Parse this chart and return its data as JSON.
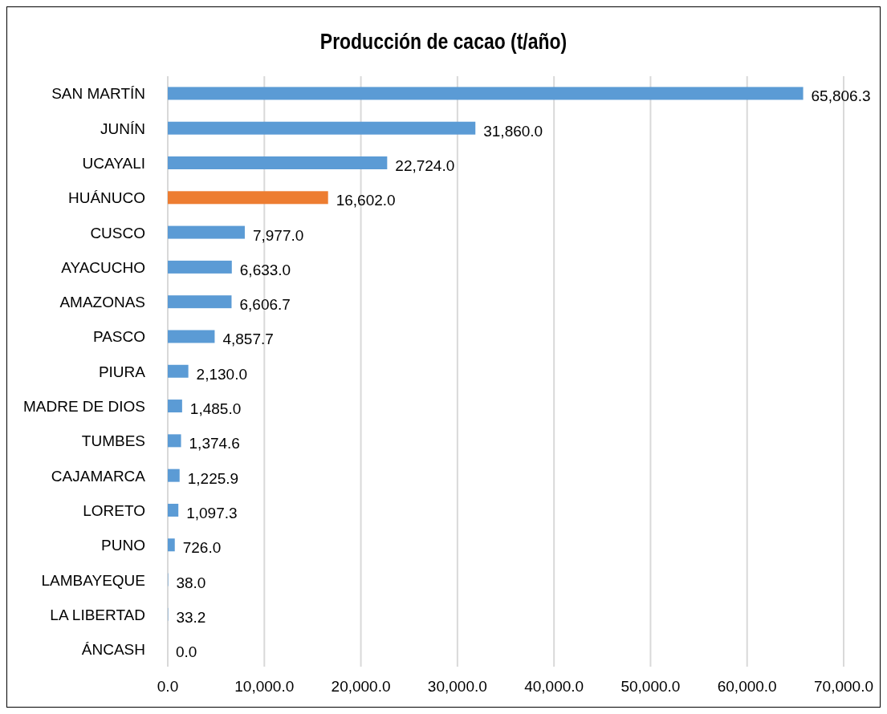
{
  "chart_data": {
    "type": "bar",
    "orientation": "horizontal",
    "title": "Producción de cacao (t/año)",
    "categories": [
      "SAN MARTÍN",
      "JUNÍN",
      "UCAYALI",
      "HUÁNUCO",
      "CUSCO",
      "AYACUCHO",
      "AMAZONAS",
      "PASCO",
      "PIURA",
      "MADRE DE DIOS",
      "TUMBES",
      "CAJAMARCA",
      "LORETO",
      "PUNO",
      "LAMBAYEQUE",
      "LA LIBERTAD",
      "ÁNCASH"
    ],
    "values": [
      65806.3,
      31860.0,
      22724.0,
      16602.0,
      7977.0,
      6633.0,
      6606.7,
      4857.7,
      2130.0,
      1485.0,
      1374.6,
      1225.9,
      1097.3,
      726.0,
      38.0,
      33.2,
      0.0
    ],
    "value_labels": [
      "65,806.3",
      "31,860.0",
      "22,724.0",
      "16,602.0",
      "7,977.0",
      "6,633.0",
      "6,606.7",
      "4,857.7",
      "2,130.0",
      "1,485.0",
      "1,374.6",
      "1,225.9",
      "1,097.3",
      "726.0",
      "38.0",
      "33.2",
      "0.0"
    ],
    "colors": [
      "#5b9bd5",
      "#5b9bd5",
      "#5b9bd5",
      "#ed7d31",
      "#5b9bd5",
      "#5b9bd5",
      "#5b9bd5",
      "#5b9bd5",
      "#5b9bd5",
      "#5b9bd5",
      "#5b9bd5",
      "#5b9bd5",
      "#5b9bd5",
      "#5b9bd5",
      "#5b9bd5",
      "#5b9bd5",
      "#5b9bd5"
    ],
    "xlim": [
      0,
      70000
    ],
    "xticks": [
      {
        "value": 0,
        "label": "0.0"
      },
      {
        "value": 10000,
        "label": "10,000.0"
      },
      {
        "value": 20000,
        "label": "20,000.0"
      },
      {
        "value": 30000,
        "label": "30,000.0"
      },
      {
        "value": 40000,
        "label": "40,000.0"
      },
      {
        "value": 50000,
        "label": "50,000.0"
      },
      {
        "value": 60000,
        "label": "60,000.0"
      },
      {
        "value": 70000,
        "label": "70,000.0"
      }
    ],
    "grid": "x",
    "legend": false
  }
}
